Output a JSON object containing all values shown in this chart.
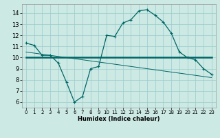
{
  "title": "",
  "xlabel": "Humidex (Indice chaleur)",
  "background_color": "#cce9e4",
  "grid_color": "#99cccc",
  "line_color": "#006666",
  "xlim": [
    -0.5,
    23.5
  ],
  "ylim": [
    5.5,
    14.8
  ],
  "xticks": [
    0,
    1,
    2,
    3,
    4,
    5,
    6,
    7,
    8,
    9,
    10,
    11,
    12,
    13,
    14,
    15,
    16,
    17,
    18,
    19,
    20,
    21,
    22,
    23
  ],
  "yticks": [
    6,
    7,
    8,
    9,
    10,
    11,
    12,
    13,
    14
  ],
  "line1_x": [
    0,
    1,
    2,
    3,
    4,
    5,
    6,
    7,
    8,
    9,
    10,
    11,
    12,
    13,
    14,
    15,
    16,
    17,
    18,
    19,
    20,
    21,
    22,
    23
  ],
  "line1_y": [
    11.3,
    11.1,
    10.2,
    10.2,
    9.5,
    7.8,
    6.0,
    6.5,
    9.0,
    9.2,
    12.0,
    11.9,
    13.1,
    13.4,
    14.2,
    14.3,
    13.8,
    13.2,
    12.2,
    10.5,
    10.0,
    9.8,
    9.0,
    8.5
  ],
  "line2_x": [
    0,
    23
  ],
  "line2_y": [
    10.0,
    10.0
  ],
  "line3_x": [
    0,
    23
  ],
  "line3_y": [
    10.5,
    8.2
  ],
  "line4_x": [
    0,
    19
  ],
  "line4_y": [
    10.0,
    10.0
  ],
  "tick_fontsize": 5,
  "xlabel_fontsize": 6,
  "marker_size": 3,
  "lw_main": 0.9,
  "lw_flat": 1.8,
  "lw_diag": 0.7,
  "lw_short": 0.7
}
